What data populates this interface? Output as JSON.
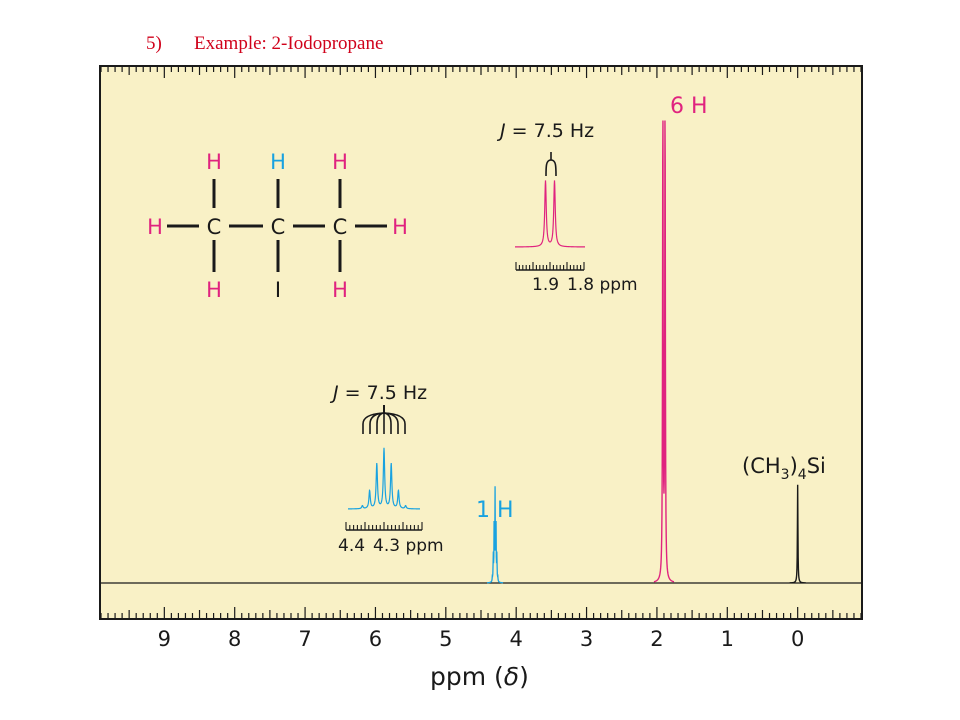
{
  "header": {
    "number": "5)",
    "title": "Example:  2-Iodopropane"
  },
  "colors": {
    "background": "#f9f1c6",
    "pink": "#e0237f",
    "blue": "#19a2e0",
    "black": "#1a1a1a"
  },
  "molecule": {
    "top_row": [
      "H",
      "H",
      "H"
    ],
    "middle_row": [
      "H",
      "C",
      "C",
      "C",
      "H"
    ],
    "bottom_row": [
      "H",
      "I",
      "H"
    ]
  },
  "chart_data": {
    "type": "line",
    "title": "",
    "xlabel_text": "ppm",
    "xlabel_symbol": "δ",
    "x_reversed": true,
    "xlim": [
      9.9,
      -0.9
    ],
    "x_ticks": [
      "9",
      "8",
      "7",
      "6",
      "5",
      "4",
      "3",
      "2",
      "1",
      "0"
    ],
    "series": [
      {
        "label": "6 H",
        "shift": 1.9,
        "multiplicity": "doublet",
        "peak_count": 2,
        "rel_height": 0.99,
        "color": "pink"
      },
      {
        "label": "1 H",
        "shift": 4.3,
        "multiplicity": "septet",
        "peak_count": 7,
        "rel_height": 0.18,
        "color": "blue"
      },
      {
        "label": "(CH3)4Si",
        "shift": 0.0,
        "multiplicity": "singlet",
        "peak_count": 1,
        "rel_height": 0.2,
        "color": "black"
      }
    ],
    "annotations": {
      "doublet_j": "= 7.5 Hz",
      "septet_j": "= 7.5 Hz",
      "j_letter": "J",
      "doublet_inset_ticks": [
        "1.9",
        "1.8 ppm"
      ],
      "septet_inset_ticks": [
        "4.4",
        "4.3 ppm"
      ],
      "label_6h": "6 H",
      "label_1h": "1 H",
      "tms_main": "(CH",
      "tms_sub": "3",
      "tms_tail": ")",
      "tms_sub2": "4",
      "tms_end": "Si"
    }
  }
}
